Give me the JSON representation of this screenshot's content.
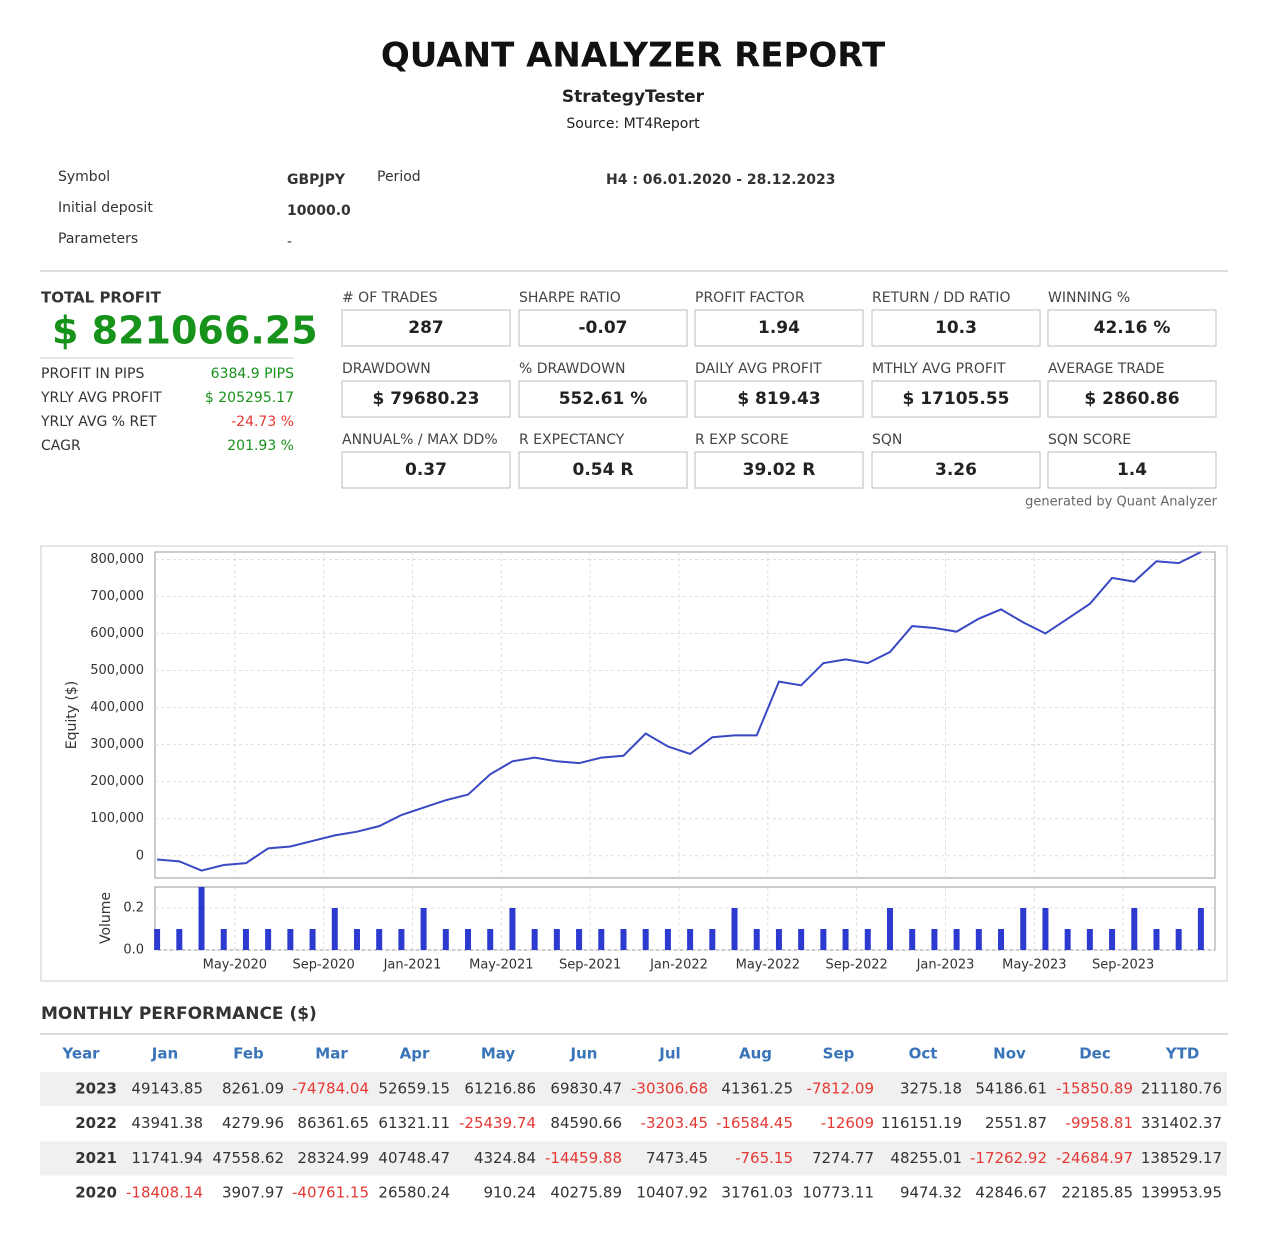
{
  "header": {
    "title": "QUANT ANALYZER REPORT",
    "subtitle": "StrategyTester",
    "source": "Source: MT4Report"
  },
  "info": {
    "symbol_label": "Symbol",
    "symbol": "GBPJPY",
    "period_label": "Period",
    "period": "H4 : 06.01.2020 - 28.12.2023",
    "deposit_label": "Initial deposit",
    "deposit": "10000.0",
    "parameters_label": "Parameters",
    "parameters": "-"
  },
  "total_profit": {
    "label": "TOTAL PROFIT",
    "value": "$ 821066.25"
  },
  "stats": [
    {
      "label": "PROFIT IN PIPS",
      "value": "6384.9 PIPS"
    },
    {
      "label": "YRLY AVG PROFIT",
      "value": "$ 205295.17"
    },
    {
      "label": "YRLY AVG % RET",
      "value": "-24.73 %"
    },
    {
      "label": "CAGR",
      "value": "201.93 %"
    }
  ],
  "metrics": [
    {
      "label": "# OF TRADES",
      "value": "287"
    },
    {
      "label": "SHARPE RATIO",
      "value": "-0.07"
    },
    {
      "label": "PROFIT FACTOR",
      "value": "1.94"
    },
    {
      "label": "RETURN / DD RATIO",
      "value": "10.3"
    },
    {
      "label": "WINNING %",
      "value": "42.16 %"
    },
    {
      "label": "DRAWDOWN",
      "value": "$ 79680.23"
    },
    {
      "label": "% DRAWDOWN",
      "value": "552.61 %"
    },
    {
      "label": "DAILY AVG PROFIT",
      "value": "$ 819.43"
    },
    {
      "label": "MTHLY AVG PROFIT",
      "value": "$ 17105.55"
    },
    {
      "label": "AVERAGE TRADE",
      "value": "$ 2860.86"
    },
    {
      "label": "ANNUAL% / MAX DD%",
      "value": "0.37"
    },
    {
      "label": "R EXPECTANCY",
      "value": "0.54 R"
    },
    {
      "label": "R EXP SCORE",
      "value": "39.02 R"
    },
    {
      "label": "SQN",
      "value": "3.26"
    },
    {
      "label": "SQN SCORE",
      "value": "1.4"
    }
  ],
  "generated": "generated by Quant Analyzer",
  "chart_data": {
    "type": "line",
    "ylabel": "Equity ($)",
    "y2label": "Volume",
    "x": [
      "Jan-2020",
      "Feb-2020",
      "Mar-2020",
      "Apr-2020",
      "May-2020",
      "Jun-2020",
      "Jul-2020",
      "Aug-2020",
      "Sep-2020",
      "Oct-2020",
      "Nov-2020",
      "Dec-2020",
      "Jan-2021",
      "Feb-2021",
      "Mar-2021",
      "Apr-2021",
      "May-2021",
      "Jun-2021",
      "Jul-2021",
      "Aug-2021",
      "Sep-2021",
      "Oct-2021",
      "Nov-2021",
      "Dec-2021",
      "Jan-2022",
      "Feb-2022",
      "Mar-2022",
      "Apr-2022",
      "May-2022",
      "Jun-2022",
      "Jul-2022",
      "Aug-2022",
      "Sep-2022",
      "Oct-2022",
      "Nov-2022",
      "Dec-2022",
      "Jan-2023",
      "Feb-2023",
      "Mar-2023",
      "Apr-2023",
      "May-2023",
      "Jun-2023",
      "Jul-2023",
      "Aug-2023",
      "Sep-2023",
      "Oct-2023",
      "Nov-2023",
      "Dec-2023"
    ],
    "series": [
      {
        "name": "Equity",
        "color": "#3949c4",
        "values": [
          -10000,
          -15000,
          -40000,
          -25000,
          -20000,
          20000,
          25000,
          40000,
          55000,
          65000,
          80000,
          110000,
          130000,
          150000,
          165000,
          220000,
          255000,
          265000,
          255000,
          250000,
          265000,
          270000,
          330000,
          295000,
          275000,
          320000,
          325000,
          325000,
          470000,
          460000,
          520000,
          530000,
          520000,
          550000,
          620000,
          615000,
          605000,
          640000,
          665000,
          630000,
          600000,
          640000,
          680000,
          750000,
          740000,
          795000,
          790000,
          820000
        ]
      },
      {
        "name": "Volume",
        "color": "#2d3ad0",
        "axis": "y2",
        "values": [
          0.1,
          0.1,
          0.3,
          0.1,
          0.1,
          0.1,
          0.1,
          0.1,
          0.2,
          0.1,
          0.1,
          0.1,
          0.2,
          0.1,
          0.1,
          0.1,
          0.2,
          0.1,
          0.1,
          0.1,
          0.1,
          0.1,
          0.1,
          0.1,
          0.1,
          0.1,
          0.2,
          0.1,
          0.1,
          0.1,
          0.1,
          0.1,
          0.1,
          0.2,
          0.1,
          0.1,
          0.1,
          0.1,
          0.1,
          0.2,
          0.2,
          0.1,
          0.1,
          0.1,
          0.2,
          0.1,
          0.1,
          0.2
        ]
      }
    ],
    "xticks": [
      "May-2020",
      "Sep-2020",
      "Jan-2021",
      "May-2021",
      "Sep-2021",
      "Jan-2022",
      "May-2022",
      "Sep-2022",
      "Jan-2023",
      "May-2023",
      "Sep-2023"
    ],
    "ylim": [
      -60000,
      820000
    ],
    "yticks": [
      0,
      {
        "value": 100000,
        "label": "100,000"
      },
      {
        "value": 200000,
        "label": "200,000"
      },
      {
        "value": 300000,
        "label": "300,000"
      },
      {
        "value": 400000,
        "label": "400,000"
      },
      {
        "value": 500000,
        "label": "500,000"
      },
      {
        "value": 600000,
        "label": "600,000"
      },
      {
        "value": 700000,
        "label": "700,000"
      },
      {
        "value": 800000,
        "label": "800,000"
      }
    ],
    "y2lim": [
      0,
      0.3
    ],
    "y2ticks": [
      {
        "value": 0,
        "label": "0.0"
      },
      0.2
    ],
    "grid": true
  },
  "monthly": {
    "title": "MONTHLY PERFORMANCE ($)",
    "columns": [
      "Year",
      "Jan",
      "Feb",
      "Mar",
      "Apr",
      "May",
      "Jun",
      "Jul",
      "Aug",
      "Sep",
      "Oct",
      "Nov",
      "Dec",
      "YTD"
    ],
    "rows": [
      [
        "2023",
        49143.85,
        8261.09,
        -74784.04,
        52659.15,
        61216.86,
        69830.47,
        -30306.68,
        41361.25,
        -7812.09,
        3275.18,
        54186.61,
        -15850.89,
        211180.76
      ],
      [
        "2022",
        43941.38,
        4279.96,
        86361.65,
        61321.11,
        -25439.74,
        84590.66,
        -3203.45,
        -16584.45,
        -12609,
        116151.19,
        2551.87,
        -9958.81,
        331402.37
      ],
      [
        "2021",
        11741.94,
        47558.62,
        28324.99,
        40748.47,
        4324.84,
        -14459.88,
        7473.45,
        -765.15,
        7274.77,
        48255.01,
        -17262.92,
        -24684.97,
        138529.17
      ],
      [
        "2020",
        -18408.14,
        3907.97,
        -40761.15,
        26580.24,
        910.24,
        40275.89,
        10407.92,
        31761.03,
        10773.11,
        9474.32,
        42846.67,
        22185.85,
        139953.95
      ]
    ]
  }
}
